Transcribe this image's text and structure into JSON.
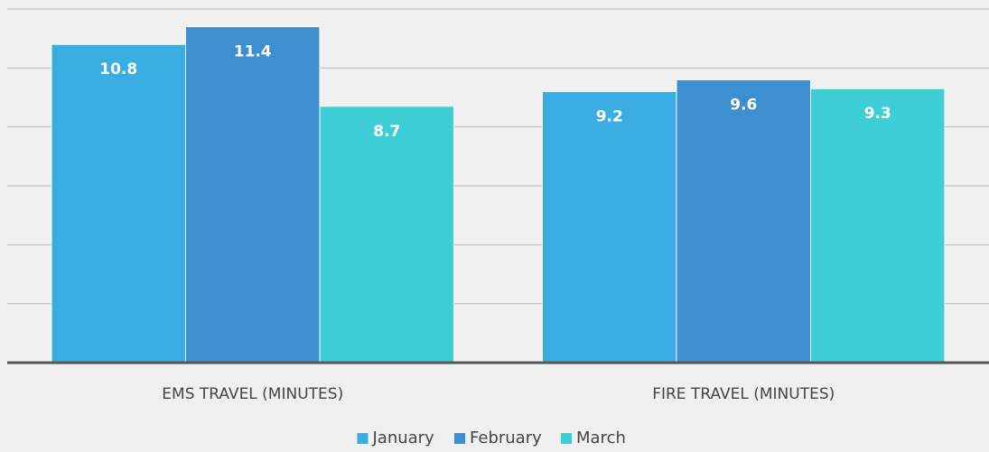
{
  "chart_data": {
    "type": "bar",
    "categories": [
      "EMS TRAVEL (MINUTES)",
      "FIRE TRAVEL (MINUTES)"
    ],
    "series": [
      {
        "name": "January",
        "color": "#3aaee2",
        "values": [
          10.8,
          9.2
        ]
      },
      {
        "name": "February",
        "color": "#3d8fcf",
        "values": [
          11.4,
          9.6
        ]
      },
      {
        "name": "March",
        "color": "#3ecfd6",
        "values": [
          8.7,
          9.3
        ]
      }
    ],
    "ylim": [
      0,
      12
    ],
    "yticks": [
      0,
      2,
      4,
      6,
      8,
      10,
      12
    ],
    "grid": true,
    "legend": "bottom"
  }
}
